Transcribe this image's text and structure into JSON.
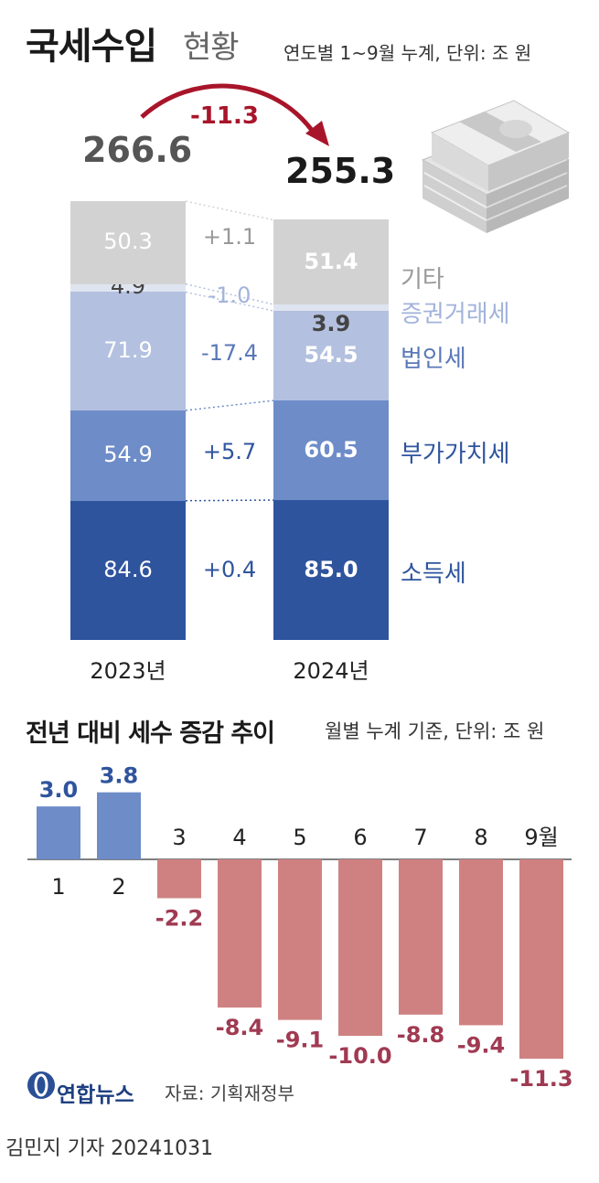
{
  "header": {
    "title_main": "국세수입",
    "title_sub": "현황",
    "note": "연도별 1~9월 누계, 단위: 조 원"
  },
  "stack_chart": {
    "totals": {
      "y2023": "266.6",
      "y2024": "255.3"
    },
    "total_diff": "-11.3",
    "years": [
      "2023년",
      "2024년"
    ],
    "categories": [
      {
        "name": "소득세",
        "v2023": "84.6",
        "v2024": "85.0",
        "change": "+0.4",
        "color": "#2f549e",
        "label_color": "#2f549e"
      },
      {
        "name": "부가가치세",
        "v2023": "54.9",
        "v2024": "60.5",
        "change": "+5.7",
        "color": "#6d8cc8",
        "label_color": "#2f549e"
      },
      {
        "name": "법인세",
        "v2023": "71.9",
        "v2024": "54.5",
        "change": "-17.4",
        "color": "#b3c0df",
        "label_color": "#5a78b8"
      },
      {
        "name": "증권거래세",
        "v2023": "4.9",
        "v2024": "3.9",
        "change": "-1.0",
        "color": "#dfe4f1",
        "label_color": "#a2b3da"
      },
      {
        "name": "기타",
        "v2023": "50.3",
        "v2024": "51.4",
        "change": "+1.1",
        "color": "#d2d2d2",
        "label_color": "#999999"
      }
    ]
  },
  "monthly": {
    "title": "전년 대비 세수 증감 추이",
    "note": "월별 누계 기준, 단위: 조 원",
    "months": [
      "1",
      "2",
      "3",
      "4",
      "5",
      "6",
      "7",
      "8",
      "9월"
    ],
    "values": [
      3.0,
      3.8,
      -2.2,
      -8.4,
      -9.1,
      -10.0,
      -8.8,
      -9.4,
      -11.3
    ],
    "value_labels": [
      "3.0",
      "3.8",
      "-2.2",
      "-8.4",
      "-9.1",
      "-10.0",
      "-8.8",
      "-9.4",
      "-11.3"
    ],
    "pos_color": "#6d8cc8",
    "neg_color": "#cf8182",
    "pos_label_color": "#2f549e",
    "neg_label_color": "#a03a52"
  },
  "chart_data": [
    {
      "type": "bar",
      "categories": [
        "2023년",
        "2024년"
      ],
      "series": [
        {
          "name": "소득세",
          "values": [
            84.6,
            85.0
          ]
        },
        {
          "name": "부가가치세",
          "values": [
            54.9,
            60.5
          ]
        },
        {
          "name": "법인세",
          "values": [
            71.9,
            54.5
          ]
        },
        {
          "name": "증권거래세",
          "values": [
            4.9,
            3.9
          ]
        },
        {
          "name": "기타",
          "values": [
            50.3,
            51.4
          ]
        }
      ],
      "totals": [
        266.6,
        255.3
      ],
      "title": "국세수입 현황",
      "stacked": true
    },
    {
      "type": "bar",
      "categories": [
        "1",
        "2",
        "3",
        "4",
        "5",
        "6",
        "7",
        "8",
        "9월"
      ],
      "values": [
        3.0,
        3.8,
        -2.2,
        -8.4,
        -9.1,
        -10.0,
        -8.8,
        -9.4,
        -11.3
      ],
      "title": "전년 대비 세수 증감 추이"
    }
  ],
  "footer": {
    "logo": "연합뉴스",
    "source": "자료: 기획재정부",
    "credit": "김민지 기자  20241031"
  }
}
